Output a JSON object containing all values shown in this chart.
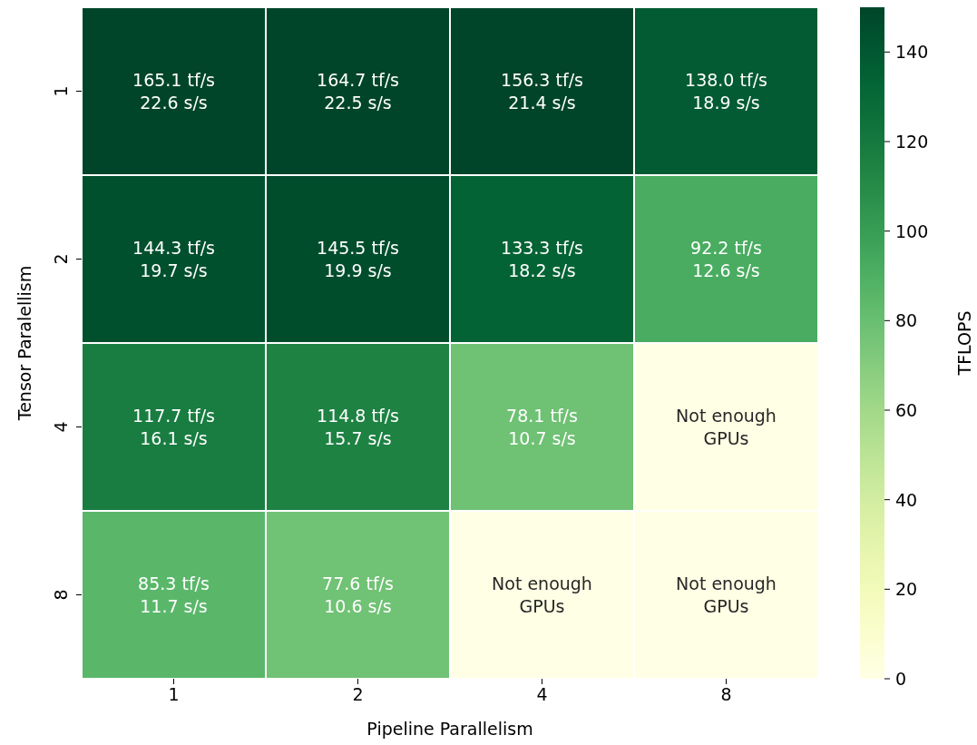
{
  "chart_data": {
    "type": "heatmap",
    "xlabel": "Pipeline Parallelism",
    "ylabel": "Tensor Paralellism",
    "clabel": "TFLOPS",
    "categories": [
      "1",
      "2",
      "4",
      "8"
    ],
    "y_categories": [
      "1",
      "2",
      "4",
      "8"
    ],
    "cells": [
      [
        165.1,
        164.7,
        156.3,
        138.0
      ],
      [
        144.3,
        145.5,
        133.3,
        92.2
      ],
      [
        117.7,
        114.8,
        78.1,
        0
      ],
      [
        85.3,
        77.6,
        0,
        0
      ]
    ],
    "cell_labels": [
      [
        "165.1 tf/s\n22.6 s/s",
        "164.7 tf/s\n22.5 s/s",
        "156.3 tf/s\n21.4 s/s",
        "138.0 tf/s\n18.9 s/s"
      ],
      [
        "144.3 tf/s\n19.7 s/s",
        "145.5 tf/s\n19.9 s/s",
        "133.3 tf/s\n18.2 s/s",
        "92.2 tf/s\n12.6 s/s"
      ],
      [
        "117.7 tf/s\n16.1 s/s",
        "114.8 tf/s\n15.7 s/s",
        "78.1 tf/s\n10.7 s/s",
        "Not enough\nGPUs"
      ],
      [
        "85.3 tf/s\n11.7 s/s",
        "77.6 tf/s\n10.6 s/s",
        "Not enough\nGPUs",
        "Not enough\nGPUs"
      ]
    ],
    "clim": [
      0,
      150
    ],
    "cticks": [
      0,
      20,
      40,
      60,
      80,
      100,
      120,
      140
    ]
  }
}
